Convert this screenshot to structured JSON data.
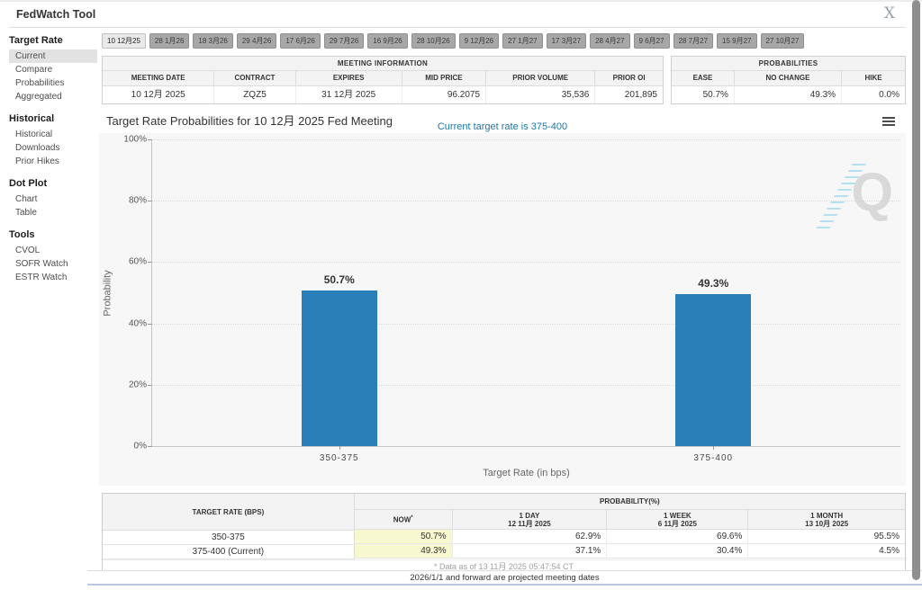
{
  "header": {
    "title": "FedWatch Tool",
    "close_label": "X"
  },
  "sidebar": {
    "groups": [
      {
        "label": "Target Rate",
        "items": [
          "Current",
          "Compare",
          "Probabilities",
          "Aggregated"
        ]
      },
      {
        "label": "Historical",
        "items": [
          "Historical",
          "Downloads",
          "Prior Hikes"
        ]
      },
      {
        "label": "Dot Plot",
        "items": [
          "Chart",
          "Table"
        ]
      },
      {
        "label": "Tools",
        "items": [
          "CVOL",
          "SOFR Watch",
          "ESTR Watch"
        ]
      }
    ]
  },
  "active_tab": "10 12月25",
  "tabs": [
    "10 12月25",
    "28 1月26",
    "18 3月26",
    "29 4月26",
    "17 6月26",
    "29 7月26",
    "16 9月26",
    "28 10月26",
    "9 12月26",
    "27 1月27",
    "17 3月27",
    "28 4月27",
    "9 6月27",
    "28 7月27",
    "15 9月27",
    "27 10月27"
  ],
  "meeting_info": {
    "title": "MEETING INFORMATION",
    "columns": [
      "MEETING DATE",
      "CONTRACT",
      "EXPIRES",
      "MID PRICE",
      "PRIOR VOLUME",
      "PRIOR OI"
    ],
    "values": [
      "10 12月 2025",
      "ZQZ5",
      "31 12月 2025",
      "96.2075",
      "35,536",
      "201,895"
    ]
  },
  "probabilities": {
    "title": "PROBABILITIES",
    "columns": [
      "EASE",
      "NO CHANGE",
      "HIKE"
    ],
    "values": [
      "50.7%",
      "49.3%",
      "0.0%"
    ]
  },
  "chart_data": {
    "type": "bar",
    "title": "Target Rate Probabilities for 10 12月 2025 Fed Meeting",
    "subtitle": "Current target rate is 375-400",
    "categories": [
      "350-375",
      "375-400"
    ],
    "values": [
      50.7,
      49.3
    ],
    "value_labels": [
      "50.7%",
      "49.3%"
    ],
    "xlabel": "Target Rate (in bps)",
    "ylabel": "Probability",
    "ylim": [
      0,
      100
    ],
    "yticks": [
      "100%",
      "80%",
      "60%",
      "40%",
      "20%",
      "0%"
    ],
    "grid": "dotted-horizontal",
    "legend": "none",
    "bar_color": "#2980b9",
    "subtitle_color": "#1f76a6",
    "watermark_letter": "Q"
  },
  "bottom_table": {
    "col1_header": "TARGET RATE (BPS)",
    "group_header": "PROBABILITY(%)",
    "sub_headers": [
      {
        "l1": "NOW",
        "sup": "*",
        "l2": ""
      },
      {
        "l1": "1 DAY",
        "l2": "12 11月 2025"
      },
      {
        "l1": "1 WEEK",
        "l2": "6 11月 2025"
      },
      {
        "l1": "1 MONTH",
        "l2": "13 10月 2025"
      }
    ],
    "rows": [
      {
        "rate": "350-375",
        "now": "50.7%",
        "day": "62.9%",
        "week": "69.6%",
        "month": "95.5%"
      },
      {
        "rate": "375-400 (Current)",
        "now": "49.3%",
        "day": "37.1%",
        "week": "30.4%",
        "month": "4.5%"
      }
    ],
    "footnote": "* Data as of 13 11月 2025 05:47:54 CT",
    "now_highlight_color": "#f7f7d0"
  },
  "footer_note": "2026/1/1 and forward are projected meeting dates"
}
